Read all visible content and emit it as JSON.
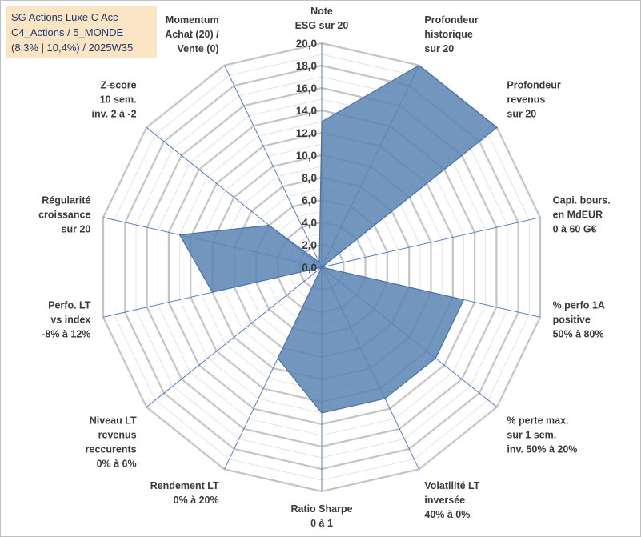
{
  "info": {
    "line1": "SG Actions Luxe C Acc",
    "line2": "C4_Actions / 5_MONDE",
    "line3": "(8,3% | 10,4%) / 2025W35"
  },
  "colors": {
    "fill": "#5b84b4",
    "stroke": "#4a72a6",
    "grid": "#c8c8c8",
    "spoke": "#4472c4",
    "info_bg": "#fbe5c4",
    "info_text": "#1f3864"
  },
  "chart_data": {
    "type": "radar",
    "title": "",
    "range": [
      0,
      20
    ],
    "tick_step": 1,
    "tick_labels": [
      "0,0",
      "2,0",
      "4,0",
      "6,0",
      "8,0",
      "10,0",
      "12,0",
      "14,0",
      "16,0",
      "18,0",
      "20,0"
    ],
    "axes": [
      [
        "Note",
        "ESG sur 20"
      ],
      [
        "Profondeur",
        "historique",
        "sur 20"
      ],
      [
        "Profondeur",
        "revenus",
        "sur 20"
      ],
      [
        "Capi. bours.",
        "en MdEUR",
        "0 à 60 G€"
      ],
      [
        "% perfo 1A",
        "positive",
        "50% à 80%"
      ],
      [
        "% perte max.",
        "sur 1 sem.",
        "inv. 50% à 20%"
      ],
      [
        "Volatilité LT",
        "inversée",
        "40% à 0%"
      ],
      [
        "Ratio Sharpe",
        "0 à 1"
      ],
      [
        "Rendement LT",
        "0% à 20%"
      ],
      [
        "Niveau LT",
        "revenus",
        "reccurents",
        "0% à 6%"
      ],
      [
        "Perfo. LT",
        "vs index",
        "-8% à 12%"
      ],
      [
        "Régularité",
        "croissance",
        "sur 20"
      ],
      [
        "Z-score",
        "10 sem.",
        "inv. 2 à -2"
      ],
      [
        "Momentum",
        "Achat (20) /",
        "Vente (0)"
      ]
    ],
    "values": [
      13,
      20,
      20,
      0,
      13,
      13,
      13,
      13,
      9,
      0,
      10,
      13,
      6,
      0.5
    ]
  }
}
